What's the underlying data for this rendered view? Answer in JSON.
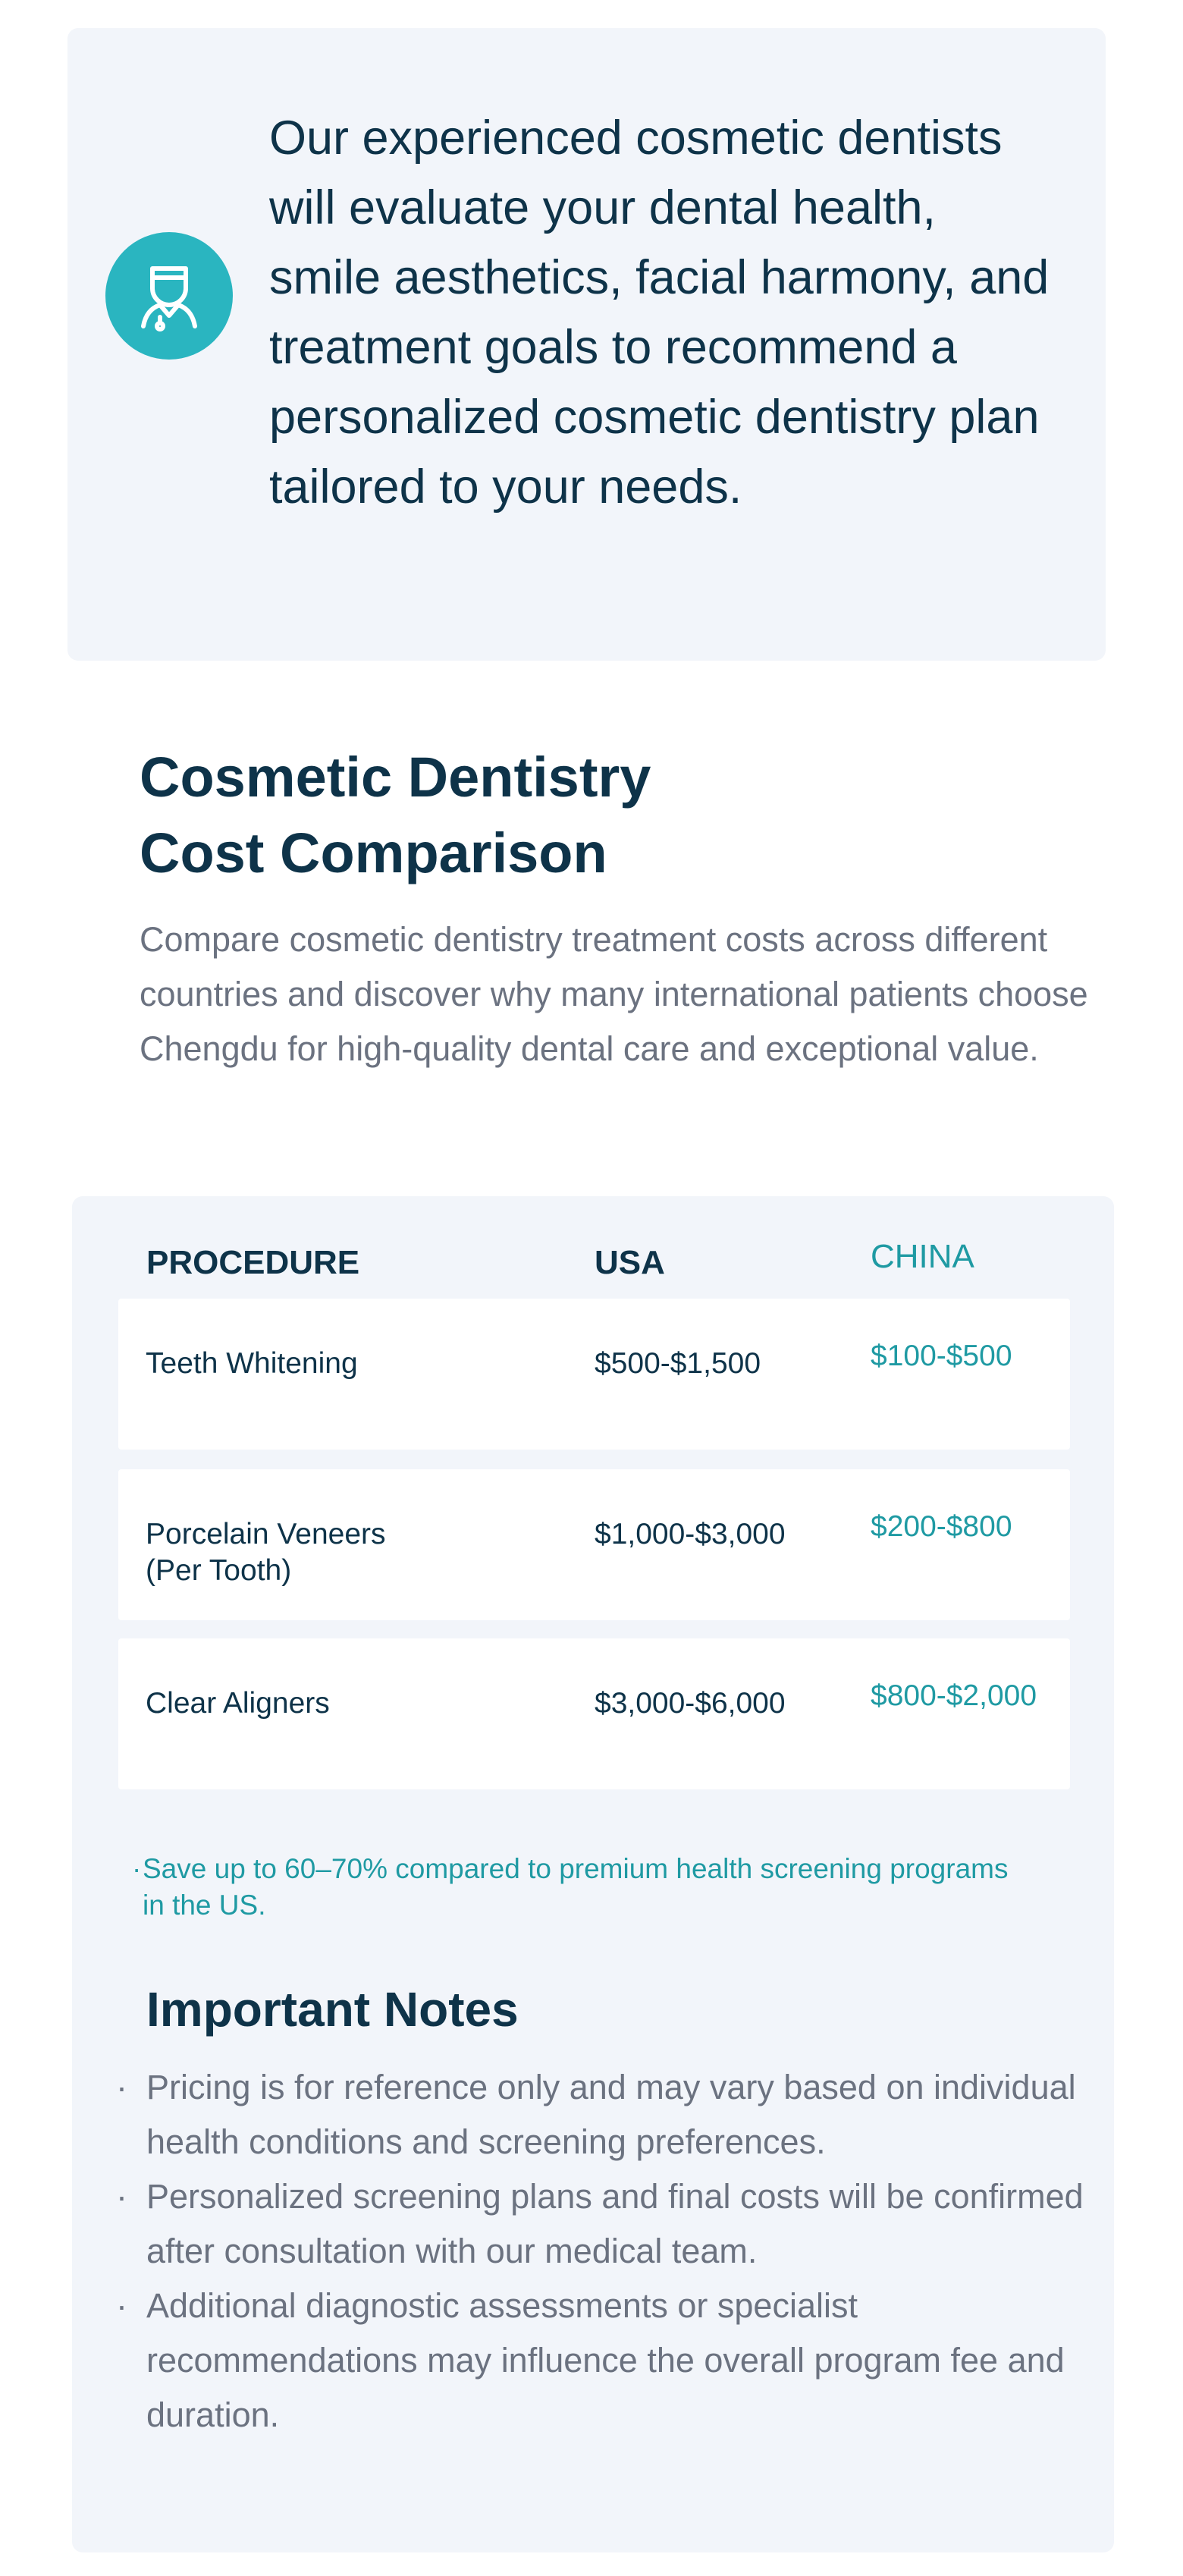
{
  "intro": {
    "text": "Our experienced cosmetic dentists will evaluate your dental health, smile aesthetics, facial harmony, and treatment goals to recommend a personalized cosmetic dentistry plan tailored to your needs."
  },
  "section": {
    "title_line1": "Cosmetic Dentistry",
    "title_line2": "Cost Comparison",
    "description": "Compare cosmetic dentistry treatment costs across different countries and discover why many international patients choose Chengdu for high-quality dental care and exceptional value."
  },
  "table": {
    "header": [
      "PROCEDURE",
      "USA",
      "CHINA"
    ],
    "rows": [
      [
        "Teeth Whitening",
        "$500-$1,500",
        "$100-$500"
      ],
      [
        "Porcelain Veneers (Per Tooth)",
        "$1,000-$3,000",
        "$200-$800"
      ],
      [
        "Clear Aligners",
        "$3,000-$6,000",
        "$800-$2,000"
      ]
    ]
  },
  "savings_note": "Save up to 60–70% compared to premium health screening programs in the US.",
  "notes": {
    "title": "Important Notes",
    "items": [
      "Pricing is for reference only and may vary based on individual health conditions and screening preferences.",
      "Personalized screening plans and final costs will be confirmed after consultation with our medical team.",
      "Additional diagnostic assessments or specialist recommendations may influence the overall program fee and duration."
    ]
  }
}
